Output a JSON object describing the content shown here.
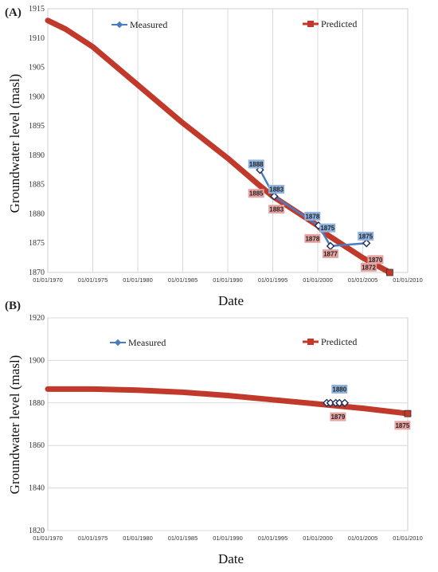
{
  "chart_data": [
    {
      "panel": "(A)",
      "type": "line",
      "xlabel": "Date",
      "ylabel": "Groundwater level (masl)",
      "ylim": [
        1870,
        1915
      ],
      "yticks": [
        "1915",
        "1910",
        "1905",
        "1900",
        "1895",
        "1890",
        "1885",
        "1880",
        "1875",
        "1870"
      ],
      "xlim": [
        "1970-01-01",
        "2010-01-01"
      ],
      "xticks": [
        "01/01/1970",
        "01/01/1975",
        "01/01/1980",
        "01/01/1985",
        "01/01/1990",
        "01/01/1995",
        "01/01/2000",
        "01/01/2005",
        "01/01/2010"
      ],
      "grid": "vertical",
      "legend": [
        "Measured",
        "Predicted"
      ],
      "colors": {
        "measured": "#4a7dbf",
        "predicted": "#c0392b",
        "measured_label_bg": "#8fb3de",
        "predicted_label_bg": "#e8a3a3"
      },
      "series": [
        {
          "name": "Predicted",
          "x": [
            "1970-01-01",
            "1972-01-01",
            "1975-01-01",
            "1980-01-01",
            "1985-01-01",
            "1990-01-01",
            "1993-06-01",
            "1995-01-01",
            "2000-01-01",
            "2001-01-01",
            "2005-01-01",
            "2008-01-01"
          ],
          "values": [
            1913,
            1911.5,
            1908.5,
            1902,
            1895.5,
            1889.5,
            1885,
            1883,
            1878,
            1876.5,
            1872.5,
            1870
          ]
        },
        {
          "name": "Measured",
          "x": [
            "1993-08-01",
            "1995-03-01",
            "2000-02-01",
            "2001-06-01",
            "2005-06-01"
          ],
          "values": [
            1887.5,
            1883,
            1878,
            1874.5,
            1875
          ]
        }
      ],
      "measured_labels": [
        {
          "x": "1993-03-01",
          "y": 1888.5,
          "text": "1888"
        },
        {
          "x": "1995-06-01",
          "y": 1884.2,
          "text": "1883"
        },
        {
          "x": "1999-06-01",
          "y": 1879.6,
          "text": "1878"
        },
        {
          "x": "2001-02-01",
          "y": 1877.6,
          "text": "1875"
        },
        {
          "x": "2005-05-01",
          "y": 1876.2,
          "text": "1875"
        }
      ],
      "predicted_labels": [
        {
          "x": "1993-03-01",
          "y": 1883.5,
          "text": "1885"
        },
        {
          "x": "1995-06-01",
          "y": 1880.8,
          "text": "1883"
        },
        {
          "x": "1999-06-01",
          "y": 1875.8,
          "text": "1878"
        },
        {
          "x": "2001-06-01",
          "y": 1873.2,
          "text": "1877"
        },
        {
          "x": "2006-06-01",
          "y": 1872.2,
          "text": "1870"
        },
        {
          "x": "2005-09-01",
          "y": 1870.9,
          "text": "1872"
        }
      ]
    },
    {
      "panel": "(B)",
      "type": "line",
      "xlabel": "Date",
      "ylabel": "Groundwater level (masl)",
      "ylim": [
        1820,
        1920
      ],
      "yticks": [
        "1920",
        "1900",
        "1880",
        "1860",
        "1840",
        "1820"
      ],
      "xlim": [
        "1970-01-01",
        "2010-01-01"
      ],
      "xticks": [
        "01/01/1970",
        "01/01/1975",
        "01/01/1980",
        "01/01/1985",
        "01/01/1990",
        "01/01/1995",
        "01/01/2000",
        "01/01/2005",
        "01/01/2010"
      ],
      "grid": "horizontal",
      "legend": [
        "Measured",
        "Predicted"
      ],
      "colors": {
        "measured": "#4a7dbf",
        "predicted": "#c0392b",
        "measured_label_bg": "#8fb3de",
        "predicted_label_bg": "#e8a3a3"
      },
      "series": [
        {
          "name": "Predicted",
          "x": [
            "1970-01-01",
            "1975-01-01",
            "1980-01-01",
            "1985-01-01",
            "1990-01-01",
            "1995-01-01",
            "2000-01-01",
            "2005-01-01",
            "2010-01-01"
          ],
          "values": [
            1886.5,
            1886.5,
            1886,
            1885,
            1883.5,
            1881.5,
            1879.5,
            1877.5,
            1875
          ]
        },
        {
          "name": "Measured",
          "x": [
            "2001-01-01",
            "2001-06-01",
            "2002-01-01",
            "2002-06-01",
            "2003-01-01"
          ],
          "values": [
            1880,
            1880,
            1880,
            1880,
            1880
          ]
        }
      ],
      "measured_labels": [
        {
          "x": "2002-06-01",
          "y": 1886.5,
          "text": "1880"
        }
      ],
      "predicted_labels": [
        {
          "x": "2002-04-01",
          "y": 1873.5,
          "text": "1879"
        },
        {
          "x": "2009-06-01",
          "y": 1869.5,
          "text": "1875"
        }
      ]
    }
  ]
}
